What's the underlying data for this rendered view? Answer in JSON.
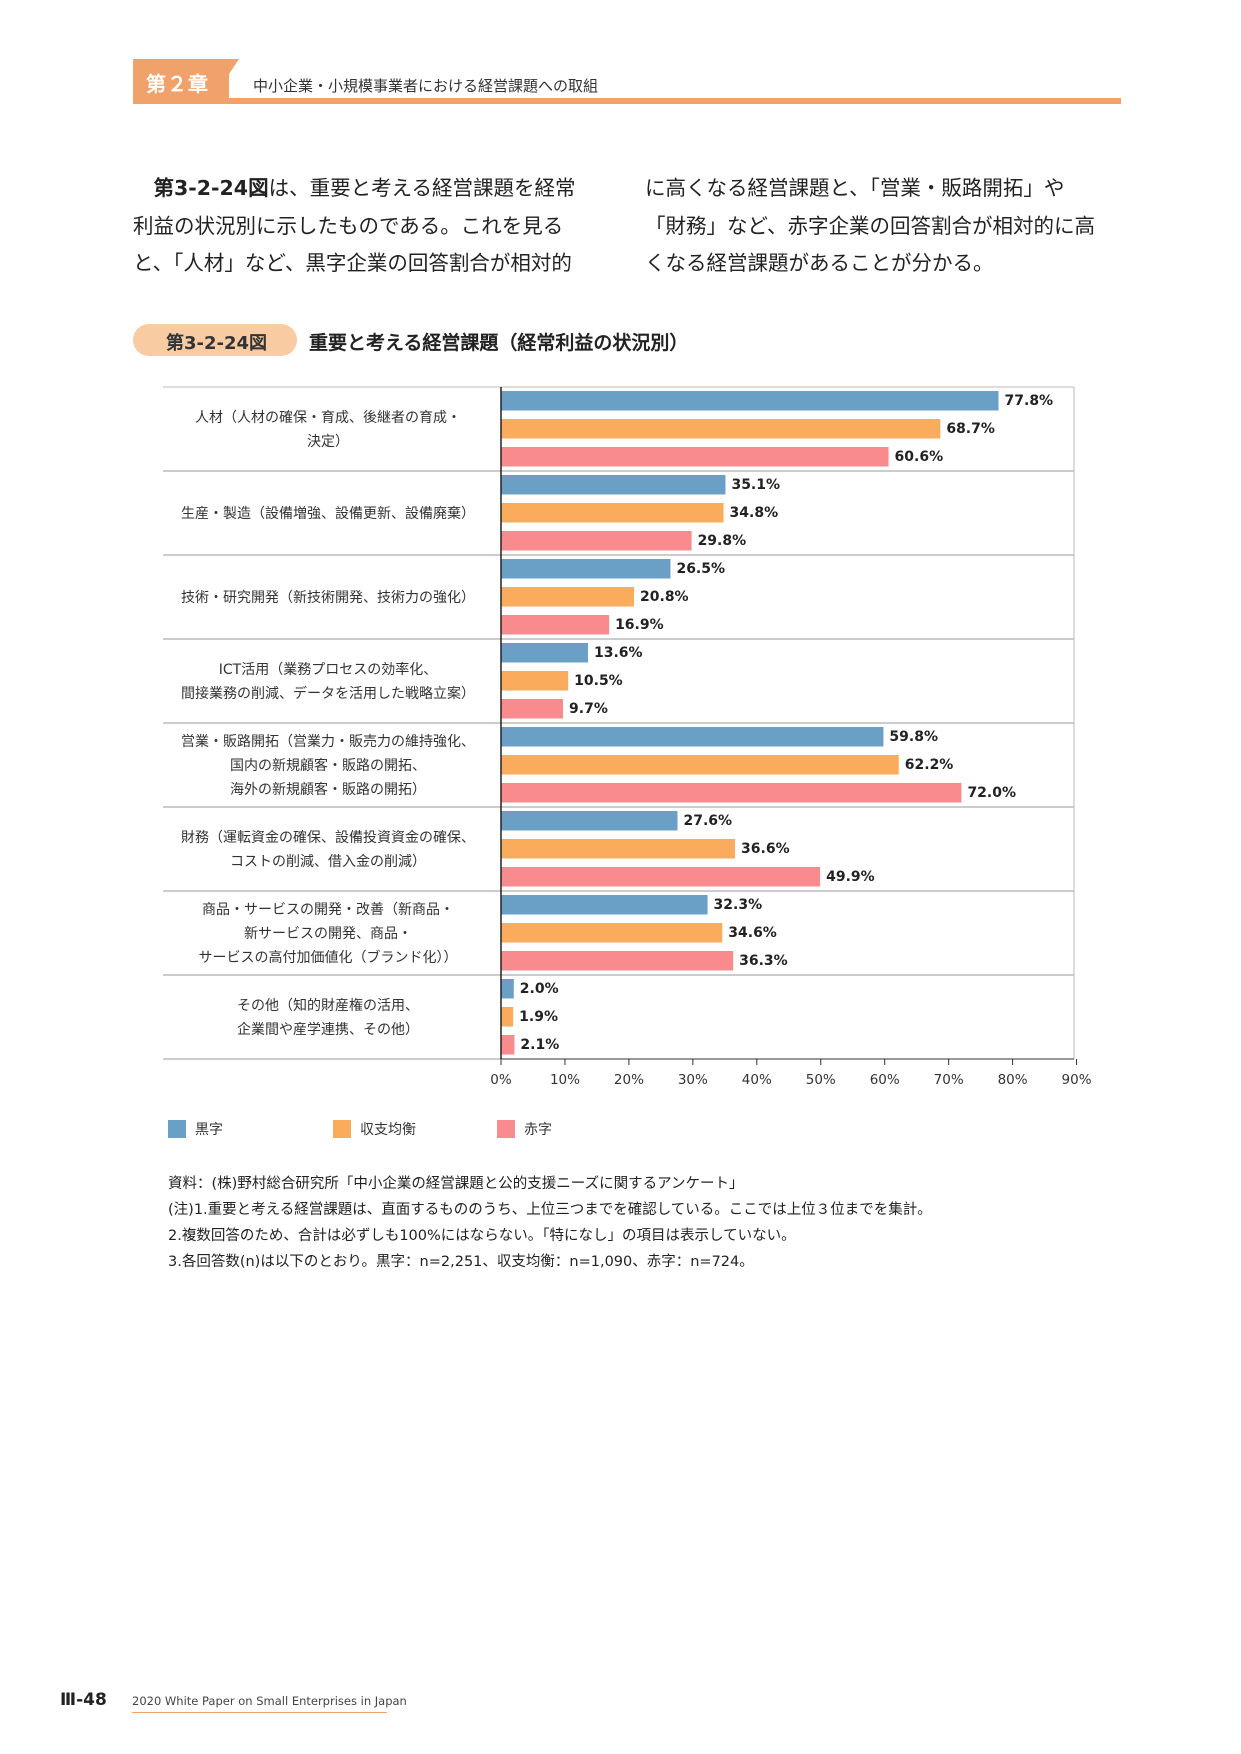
{
  "header": {
    "chapter": "第２章",
    "title": "中小企業・小規模事業者における経営課題への取組"
  },
  "body": {
    "fig_ref": "第3-2-24図",
    "left_lines": [
      "は、重要と考える経営課題を経常",
      "利益の状況別に示したものである。これを見る",
      "と、「人材」など、黒字企業の回答割合が相対的"
    ],
    "right_lines": [
      "に高くなる経営課題と、「営業・販路開拓」や",
      "「財務」など、赤字企業の回答割合が相対的に高",
      "くなる経営課題があることが分かる。"
    ]
  },
  "figure": {
    "number": "第3-2-24図",
    "title": "重要と考える経営課題（経常利益の状況別）"
  },
  "chart_data": {
    "type": "bar",
    "orientation": "horizontal",
    "categories": [
      [
        "人材（人材の確保・育成、後継者の育成・",
        "決定）"
      ],
      [
        "生産・製造（設備増強、設備更新、設備廃棄）"
      ],
      [
        "技術・研究開発（新技術開発、技術力の強化）"
      ],
      [
        "ICT活用（業務プロセスの効率化、",
        "間接業務の削減、データを活用した戦略立案）"
      ],
      [
        "営業・販路開拓（営業力・販売力の維持強化、",
        "国内の新規顧客・販路の開拓、",
        "海外の新規顧客・販路の開拓）"
      ],
      [
        "財務（運転資金の確保、設備投資資金の確保、",
        "コストの削減、借入金の削減）"
      ],
      [
        "商品・サービスの開発・改善（新商品・",
        "新サービスの開発、商品・",
        "サービスの高付加価値化（ブランド化））"
      ],
      [
        "その他（知的財産権の活用、",
        "企業間や産学連携、その他）"
      ]
    ],
    "series": [
      {
        "name": "黒字",
        "color": "#6a9fc6",
        "values": [
          77.8,
          35.1,
          26.5,
          13.6,
          59.8,
          27.6,
          32.3,
          2.0
        ],
        "labels": [
          "77.8%",
          "35.1%",
          "26.5%",
          "13.6%",
          "59.8%",
          "27.6%",
          "32.3%",
          "2.0%"
        ]
      },
      {
        "name": "収支均衡",
        "color": "#fbab5c",
        "values": [
          68.7,
          34.8,
          20.8,
          10.5,
          62.2,
          36.6,
          34.6,
          1.9
        ],
        "labels": [
          "68.7%",
          "34.8%",
          "20.8%",
          "10.5%",
          "62.2%",
          "36.6%",
          "34.6%",
          "1.9%"
        ]
      },
      {
        "name": "赤字",
        "color": "#f98a8d",
        "values": [
          60.6,
          29.8,
          16.9,
          9.7,
          72.0,
          49.9,
          36.3,
          2.1
        ],
        "labels": [
          "60.6%",
          "29.8%",
          "16.9%",
          "9.7%",
          "72.0%",
          "49.9%",
          "36.3%",
          "2.1%"
        ]
      }
    ],
    "xlim": [
      0,
      90
    ],
    "xticks": [
      "0%",
      "10%",
      "20%",
      "30%",
      "40%",
      "50%",
      "60%",
      "70%",
      "80%",
      "90%"
    ],
    "legend_position": "bottom-left"
  },
  "notes": [
    "資料：(株)野村総合研究所「中小企業の経営課題と公的支援ニーズに関するアンケート」",
    "(注)1.重要と考える経営課題は、直面するもののうち、上位三つまでを確認している。ここでは上位３位までを集計。",
    "2.複数回答のため、合計は必ずしも100%にはならない。「特になし」の項目は表示していない。",
    "3.各回答数(n)は以下のとおり。黒字：n=2,251、収支均衡：n=1,090、赤字：n=724。"
  ],
  "footer": {
    "page": "Ⅲ-48",
    "text": "2020 White Paper on Small Enterprises in Japan"
  }
}
